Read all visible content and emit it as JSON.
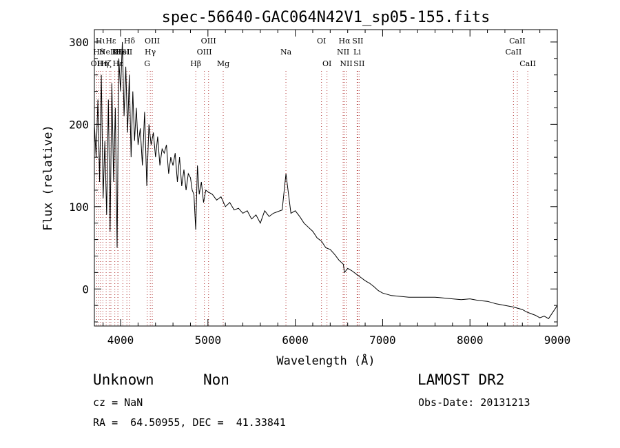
{
  "chart_data": {
    "type": "line",
    "title": "spec-56640-GAC064N42V1_sp05-155.fits",
    "xlabel": "Wavelength (Å)",
    "ylabel": "Flux (relative)",
    "xlim": [
      3700,
      9000
    ],
    "ylim": [
      -45,
      315
    ],
    "xticks": [
      4000,
      5000,
      6000,
      7000,
      8000,
      9000
    ],
    "yticks": [
      0,
      100,
      200,
      300
    ],
    "grid": false,
    "series": [
      {
        "x": [
          3700,
          3720,
          3740,
          3760,
          3780,
          3800,
          3820,
          3840,
          3860,
          3880,
          3900,
          3920,
          3940,
          3960,
          3980,
          4000,
          4020,
          4040,
          4060,
          4080,
          4100,
          4120,
          4140,
          4160,
          4180,
          4200,
          4225,
          4250,
          4275,
          4300,
          4325,
          4350,
          4375,
          4400,
          4425,
          4450,
          4475,
          4500,
          4525,
          4550,
          4575,
          4600,
          4625,
          4650,
          4675,
          4700,
          4725,
          4750,
          4775,
          4800,
          4820,
          4840,
          4860,
          4880,
          4900,
          4925,
          4950,
          4975,
          5000,
          5050,
          5100,
          5150,
          5200,
          5250,
          5300,
          5350,
          5400,
          5450,
          5500,
          5550,
          5600,
          5650,
          5700,
          5750,
          5800,
          5850,
          5893,
          5950,
          6000,
          6050,
          6100,
          6150,
          6200,
          6250,
          6300,
          6350,
          6400,
          6450,
          6500,
          6550,
          6563,
          6600,
          6650,
          6700,
          6750,
          6800,
          6850,
          6900,
          6950,
          7000,
          7100,
          7200,
          7300,
          7400,
          7500,
          7600,
          7700,
          7800,
          7900,
          8000,
          8100,
          8200,
          8300,
          8400,
          8500,
          8600,
          8650,
          8700,
          8750,
          8800,
          8850,
          8900,
          8950,
          9000
        ],
        "y": [
          200,
          160,
          230,
          130,
          260,
          110,
          180,
          90,
          230,
          70,
          250,
          130,
          220,
          50,
          280,
          240,
          300,
          210,
          270,
          190,
          260,
          160,
          240,
          180,
          220,
          175,
          195,
          150,
          215,
          125,
          200,
          175,
          190,
          160,
          185,
          150,
          170,
          165,
          175,
          140,
          160,
          150,
          165,
          130,
          160,
          125,
          145,
          120,
          140,
          135,
          120,
          115,
          72,
          150,
          115,
          130,
          105,
          120,
          118,
          115,
          108,
          112,
          100,
          105,
          96,
          98,
          92,
          95,
          85,
          90,
          80,
          95,
          88,
          92,
          94,
          96,
          140,
          92,
          95,
          88,
          80,
          75,
          70,
          62,
          58,
          50,
          48,
          42,
          35,
          30,
          20,
          25,
          22,
          18,
          14,
          10,
          7,
          3,
          -2,
          -5,
          -8,
          -9,
          -10,
          -10,
          -10,
          -10,
          -11,
          -12,
          -13,
          -12,
          -14,
          -15,
          -18,
          -20,
          -22,
          -25,
          -28,
          -30,
          -32,
          -35,
          -33,
          -36,
          -28,
          -20
        ]
      }
    ],
    "line_markers": [
      {
        "w": 3727,
        "tier": 2,
        "label": "OII"
      },
      {
        "w": 3750,
        "tier": 1,
        "label": "Hθ"
      },
      {
        "w": 3770,
        "tier": 0,
        "label": "Hι"
      },
      {
        "w": 3797,
        "tier": 2,
        "label": "Hη"
      },
      {
        "w": 3835,
        "tier": 2,
        "label": "Hζ"
      },
      {
        "w": 3869,
        "tier": 1,
        "label": "NeIII"
      },
      {
        "w": 3889,
        "tier": 0,
        "label": "Hε"
      },
      {
        "w": 3934,
        "tier": 1,
        "label": "K"
      },
      {
        "w": 3969,
        "tier": 1,
        "label": "H"
      },
      {
        "w": 3970,
        "tier": 2,
        "label": "Hε"
      },
      {
        "w": 4026,
        "tier": 1,
        "label": "HeI"
      },
      {
        "w": 4072,
        "tier": 1,
        "label": "SII"
      },
      {
        "w": 4102,
        "tier": 0,
        "label": "Hδ"
      },
      {
        "w": 4305,
        "tier": 2,
        "label": "G"
      },
      {
        "w": 4340,
        "tier": 1,
        "label": "Hγ"
      },
      {
        "w": 4363,
        "tier": 0,
        "label": "OIII"
      },
      {
        "w": 4861,
        "tier": 2,
        "label": "Hβ"
      },
      {
        "w": 4959,
        "tier": 1,
        "label": "OIII"
      },
      {
        "w": 5007,
        "tier": 0,
        "label": "OIII"
      },
      {
        "w": 5175,
        "tier": 2,
        "label": "Mg"
      },
      {
        "w": 5893,
        "tier": 1,
        "label": "Na"
      },
      {
        "w": 6300,
        "tier": 0,
        "label": "OI"
      },
      {
        "w": 6363,
        "tier": 2,
        "label": "OI"
      },
      {
        "w": 6548,
        "tier": 1,
        "label": "NII"
      },
      {
        "w": 6563,
        "tier": 0,
        "label": "Hα"
      },
      {
        "w": 6583,
        "tier": 2,
        "label": "NII"
      },
      {
        "w": 6708,
        "tier": 1,
        "label": "Li"
      },
      {
        "w": 6716,
        "tier": 0,
        "label": "SII"
      },
      {
        "w": 6731,
        "tier": 2,
        "label": "SII"
      },
      {
        "w": 8498,
        "tier": 1,
        "label": "CaII"
      },
      {
        "w": 8542,
        "tier": 0,
        "label": "CaII"
      },
      {
        "w": 8662,
        "tier": 2,
        "label": "CaII"
      }
    ]
  },
  "info": {
    "classification": "Unknown",
    "subclass": "Non",
    "survey": "LAMOST DR2",
    "cz": "cz = NaN",
    "obs_date": "Obs-Date: 20131213",
    "coords": "RA =  64.50955, DEC =  41.33841"
  }
}
